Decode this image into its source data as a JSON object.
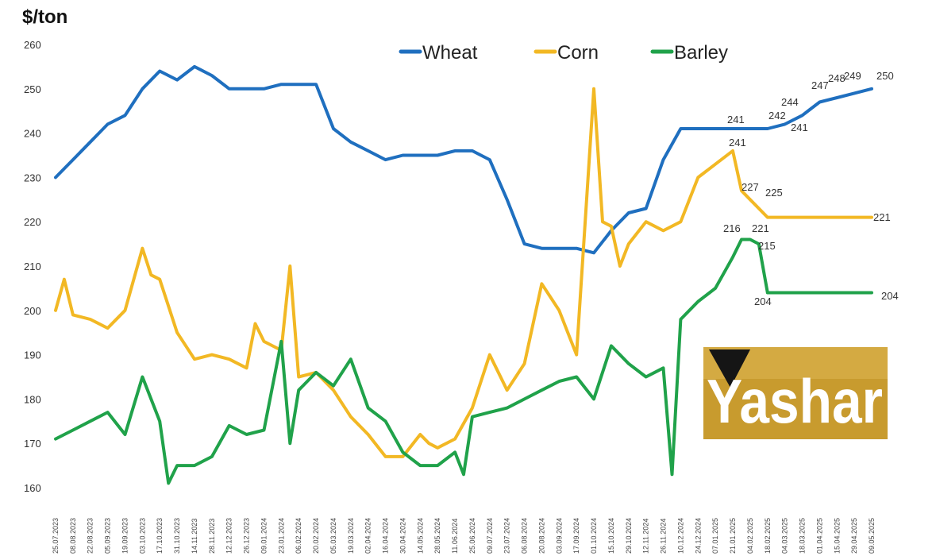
{
  "chart_data": {
    "type": "line",
    "ylabel": "$/ton",
    "ylim": [
      160,
      260
    ],
    "yticks": [
      160,
      170,
      180,
      190,
      200,
      210,
      220,
      230,
      240,
      250,
      260
    ],
    "legend_position": "top-center",
    "grid": false,
    "colors": {
      "Wheat": "#1f6fbf",
      "Corn": "#f2b824",
      "Barley": "#20a24a"
    },
    "xticks": [
      "25.07.2023",
      "08.08.2023",
      "22.08.2023",
      "05.09.2023",
      "19.09.2023",
      "03.10.2023",
      "17.10.2023",
      "31.10.2023",
      "14.11.2023",
      "28.11.2023",
      "12.12.2023",
      "26.12.2023",
      "09.01.2024",
      "23.01.2024",
      "06.02.2024",
      "20.02.2024",
      "05.03.2024",
      "19.03.2024",
      "02.04.2024",
      "16.04.2024",
      "30.04.2024",
      "14.05.2024",
      "28.05.2024",
      "11.06.2024",
      "25.06.2024",
      "09.07.2024",
      "23.07.2024",
      "06.08.2024",
      "20.08.2024",
      "03.09.2024",
      "17.09.2024",
      "01.10.2024",
      "15.10.2024",
      "29.10.2024",
      "12.11.2024",
      "26.11.2024",
      "10.12.2024",
      "24.12.2024",
      "07.01.2025",
      "21.01.2025",
      "04.02.2025",
      "18.02.2025",
      "04.03.2025",
      "18.03.2025",
      "01.04.2025",
      "15.04.2025",
      "29.04.2025",
      "09.05.2025"
    ],
    "series": [
      {
        "name": "Wheat",
        "x": [
          0,
          1,
          2,
          3,
          4,
          5,
          6,
          7,
          8,
          9,
          10,
          11,
          12,
          13,
          14,
          15,
          16,
          17,
          18,
          19,
          20,
          21,
          22,
          23,
          24,
          25,
          26,
          27,
          28,
          29,
          30,
          31,
          32,
          33,
          34,
          35,
          36,
          37,
          38,
          39,
          40,
          41,
          42,
          43,
          44,
          45,
          46,
          47
        ],
        "values": [
          230,
          234,
          238,
          242,
          244,
          250,
          254,
          252,
          255,
          253,
          250,
          250,
          250,
          251,
          251,
          251,
          241,
          238,
          236,
          234,
          235,
          235,
          235,
          236,
          236,
          234,
          225,
          215,
          214,
          214,
          214,
          213,
          218,
          222,
          223,
          234,
          241,
          241,
          241,
          241,
          241,
          241,
          242,
          244,
          247,
          248,
          249,
          250
        ]
      },
      {
        "name": "Corn",
        "x": [
          0,
          0.5,
          1,
          2,
          3,
          4,
          5,
          5.5,
          6,
          7,
          8,
          9,
          10,
          11,
          11.5,
          12,
          13,
          13.5,
          14,
          15,
          16,
          17,
          18,
          19,
          20,
          21,
          21.5,
          22,
          23,
          24,
          25,
          26,
          27,
          28,
          29,
          29.5,
          30,
          31,
          31.5,
          32,
          32.5,
          33,
          34,
          35,
          36,
          37,
          38,
          39,
          39.5,
          40,
          41,
          42,
          43,
          44,
          45,
          46,
          47
        ],
        "values": [
          200,
          207,
          199,
          198,
          196,
          200,
          214,
          208,
          207,
          195,
          189,
          190,
          189,
          187,
          197,
          193,
          191,
          210,
          185,
          186,
          182,
          176,
          172,
          167,
          167,
          172,
          170,
          169,
          171,
          178,
          190,
          182,
          188,
          206,
          200,
          195,
          190,
          250,
          220,
          219,
          210,
          215,
          220,
          218,
          220,
          230,
          233,
          236,
          227,
          225,
          221,
          221,
          221,
          221,
          221,
          221,
          221
        ]
      },
      {
        "name": "Barley",
        "x": [
          0,
          1,
          2,
          3,
          4,
          5,
          6,
          6.5,
          7,
          8,
          9,
          10,
          11,
          12,
          13,
          13.5,
          14,
          15,
          16,
          17,
          18,
          19,
          20,
          21,
          22,
          23,
          23.5,
          24,
          25,
          26,
          27,
          28,
          29,
          30,
          31,
          32,
          33,
          34,
          35,
          35.5,
          36,
          37,
          38,
          39,
          39.5,
          40,
          40.5,
          41,
          42,
          43,
          44,
          45,
          46,
          47
        ],
        "values": [
          171,
          173,
          175,
          177,
          172,
          185,
          175,
          161,
          165,
          165,
          167,
          174,
          172,
          173,
          193,
          170,
          182,
          186,
          183,
          189,
          178,
          175,
          168,
          165,
          165,
          168,
          163,
          176,
          177,
          178,
          180,
          182,
          184,
          185,
          180,
          192,
          188,
          185,
          187,
          163,
          198,
          202,
          205,
          212,
          216,
          216,
          215,
          204,
          204,
          204,
          204,
          204,
          204,
          204
        ]
      }
    ],
    "annotations": [
      {
        "series": "Wheat",
        "text": "241"
      },
      {
        "series": "Wheat",
        "text": "241"
      },
      {
        "series": "Wheat",
        "text": "242"
      },
      {
        "series": "Wheat",
        "text": "244"
      },
      {
        "series": "Wheat",
        "text": "241"
      },
      {
        "series": "Wheat",
        "text": "247"
      },
      {
        "series": "Wheat",
        "text": "248"
      },
      {
        "series": "Wheat",
        "text": "249"
      },
      {
        "series": "Wheat",
        "text": "250"
      },
      {
        "series": "Corn",
        "text": "227"
      },
      {
        "series": "Corn",
        "text": "225"
      },
      {
        "series": "Corn",
        "text": "221"
      },
      {
        "series": "Corn",
        "text": "221"
      },
      {
        "series": "Barley",
        "text": "216"
      },
      {
        "series": "Barley",
        "text": "215"
      },
      {
        "series": "Barley",
        "text": "204"
      },
      {
        "series": "Barley",
        "text": "204"
      }
    ]
  },
  "logo": {
    "text": "Yashar",
    "bg_color": "#c89b2e"
  }
}
